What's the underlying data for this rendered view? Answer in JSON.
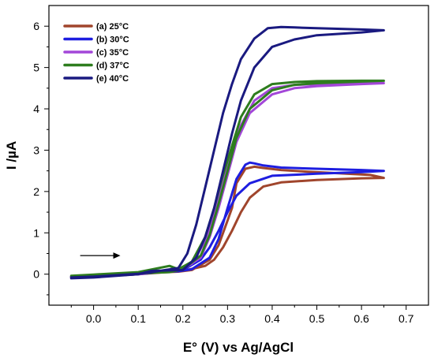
{
  "chart_data": {
    "type": "line",
    "title": "",
    "xlabel": "E° (V) vs Ag/AgCl",
    "ylabel": "I /µA",
    "xlim": [
      -0.1,
      0.75
    ],
    "ylim": [
      -0.75,
      6.5
    ],
    "xticks": [
      0.0,
      0.1,
      0.2,
      0.3,
      0.4,
      0.5,
      0.6,
      0.7
    ],
    "xtick_labels": [
      "0.0",
      "0.1",
      "0.2",
      "0.3",
      "0.4",
      "0.5",
      "0.6",
      "0.7"
    ],
    "yticks": [
      0,
      1,
      2,
      3,
      4,
      5,
      6
    ],
    "ytick_labels": [
      "0",
      "1",
      "2",
      "3",
      "4",
      "5",
      "6"
    ],
    "grid": false,
    "legend_position": "top-left",
    "arrow": {
      "from": [
        -0.03,
        0.45
      ],
      "to": [
        0.06,
        0.45
      ],
      "color": "#000000"
    },
    "series": [
      {
        "name": "(a) 25°C",
        "color": "#A0452C",
        "x": [
          -0.05,
          0.0,
          0.1,
          0.2,
          0.25,
          0.27,
          0.29,
          0.31,
          0.33,
          0.35,
          0.38,
          0.42,
          0.5,
          0.6,
          0.65,
          0.62,
          0.55,
          0.48,
          0.42,
          0.38,
          0.36,
          0.34,
          0.32,
          0.31,
          0.3,
          0.28,
          0.26,
          0.22,
          0.19,
          0.1,
          0.0,
          -0.05
        ],
        "y": [
          -0.08,
          -0.06,
          0.0,
          0.08,
          0.2,
          0.35,
          0.65,
          1.05,
          1.5,
          1.85,
          2.12,
          2.22,
          2.28,
          2.32,
          2.33,
          2.4,
          2.44,
          2.48,
          2.52,
          2.57,
          2.6,
          2.55,
          2.2,
          1.6,
          1.3,
          0.7,
          0.35,
          0.1,
          0.06,
          0.02,
          -0.04,
          -0.06
        ]
      },
      {
        "name": "(b) 30°C",
        "color": "#1E1EE0",
        "x": [
          -0.05,
          0.0,
          0.1,
          0.2,
          0.24,
          0.26,
          0.28,
          0.3,
          0.32,
          0.35,
          0.4,
          0.5,
          0.6,
          0.65,
          0.6,
          0.5,
          0.42,
          0.38,
          0.36,
          0.35,
          0.34,
          0.32,
          0.3,
          0.28,
          0.26,
          0.22,
          0.19,
          0.1,
          0.0,
          -0.05
        ],
        "y": [
          -0.08,
          -0.06,
          0.0,
          0.1,
          0.35,
          0.65,
          1.05,
          1.5,
          1.9,
          2.2,
          2.38,
          2.43,
          2.47,
          2.5,
          2.52,
          2.55,
          2.58,
          2.63,
          2.68,
          2.7,
          2.65,
          2.3,
          1.6,
          0.85,
          0.4,
          0.12,
          0.07,
          0.03,
          -0.03,
          -0.06
        ]
      },
      {
        "name": "(c) 35°C",
        "color": "#A347D8",
        "x": [
          -0.05,
          0.0,
          0.1,
          0.2,
          0.24,
          0.26,
          0.28,
          0.3,
          0.32,
          0.35,
          0.4,
          0.45,
          0.5,
          0.6,
          0.65,
          0.6,
          0.5,
          0.45,
          0.4,
          0.36,
          0.33,
          0.31,
          0.29,
          0.27,
          0.25,
          0.22,
          0.19,
          0.1,
          0.0,
          -0.05
        ],
        "y": [
          -0.08,
          -0.06,
          0.0,
          0.12,
          0.4,
          0.9,
          1.6,
          2.4,
          3.2,
          3.9,
          4.35,
          4.5,
          4.55,
          4.6,
          4.62,
          4.62,
          4.6,
          4.58,
          4.5,
          4.2,
          3.6,
          3.0,
          2.3,
          1.5,
          0.8,
          0.25,
          0.1,
          0.04,
          -0.03,
          -0.06
        ]
      },
      {
        "name": "(d) 37°C",
        "color": "#2E7D1E",
        "x": [
          -0.05,
          0.0,
          0.1,
          0.17,
          0.2,
          0.24,
          0.26,
          0.28,
          0.3,
          0.32,
          0.35,
          0.4,
          0.45,
          0.5,
          0.6,
          0.65,
          0.6,
          0.5,
          0.45,
          0.4,
          0.36,
          0.33,
          0.31,
          0.29,
          0.27,
          0.25,
          0.22,
          0.19,
          0.17,
          0.1,
          0.0,
          -0.05
        ],
        "y": [
          -0.05,
          -0.04,
          0.02,
          0.05,
          0.12,
          0.45,
          0.95,
          1.7,
          2.5,
          3.3,
          4.0,
          4.45,
          4.58,
          4.62,
          4.66,
          4.68,
          4.68,
          4.67,
          4.65,
          4.6,
          4.35,
          3.8,
          3.1,
          2.4,
          1.6,
          0.9,
          0.3,
          0.12,
          0.2,
          0.05,
          -0.01,
          -0.04
        ]
      },
      {
        "name": "(e) 40°C",
        "color": "#1A1A80",
        "x": [
          -0.05,
          0.0,
          0.1,
          0.13,
          0.2,
          0.23,
          0.25,
          0.27,
          0.29,
          0.31,
          0.33,
          0.36,
          0.4,
          0.45,
          0.5,
          0.6,
          0.65,
          0.6,
          0.5,
          0.45,
          0.42,
          0.39,
          0.36,
          0.33,
          0.31,
          0.29,
          0.27,
          0.25,
          0.23,
          0.21,
          0.19,
          0.13,
          0.1,
          0.0,
          -0.05
        ],
        "y": [
          -0.1,
          -0.08,
          0.0,
          0.08,
          0.1,
          0.4,
          0.9,
          1.6,
          2.5,
          3.4,
          4.2,
          5.0,
          5.5,
          5.68,
          5.78,
          5.85,
          5.9,
          5.92,
          5.95,
          5.97,
          5.98,
          5.95,
          5.7,
          5.2,
          4.6,
          3.9,
          3.0,
          2.1,
          1.2,
          0.5,
          0.15,
          0.05,
          0.01,
          -0.06,
          -0.08
        ]
      }
    ]
  }
}
